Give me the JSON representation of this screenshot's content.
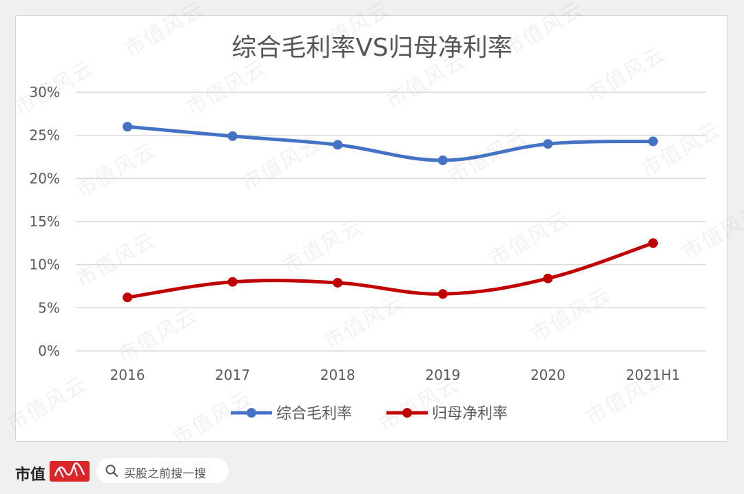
{
  "chart_data": {
    "type": "line",
    "title": "综合毛利率VS归母净利率",
    "categories": [
      "2016",
      "2017",
      "2018",
      "2019",
      "2020",
      "2021H1"
    ],
    "ylim": [
      0,
      30
    ],
    "y_ticks": [
      "0%",
      "5%",
      "10%",
      "15%",
      "20%",
      "25%",
      "30%"
    ],
    "grid": true,
    "legend_position": "bottom",
    "series": [
      {
        "name": "综合毛利率",
        "color": "#4472c4",
        "values": [
          26.0,
          24.9,
          23.9,
          22.1,
          24.0,
          24.3
        ]
      },
      {
        "name": "归母净利率",
        "color": "#c00000",
        "values": [
          6.2,
          8.0,
          7.9,
          6.6,
          8.4,
          12.5
        ]
      }
    ]
  },
  "watermark": {
    "text": "市值风云"
  },
  "footer": {
    "brand": "市值",
    "logo_icon": "brand-logo-icon",
    "search_icon": "search-icon",
    "search_text": "买股之前搜一搜"
  }
}
